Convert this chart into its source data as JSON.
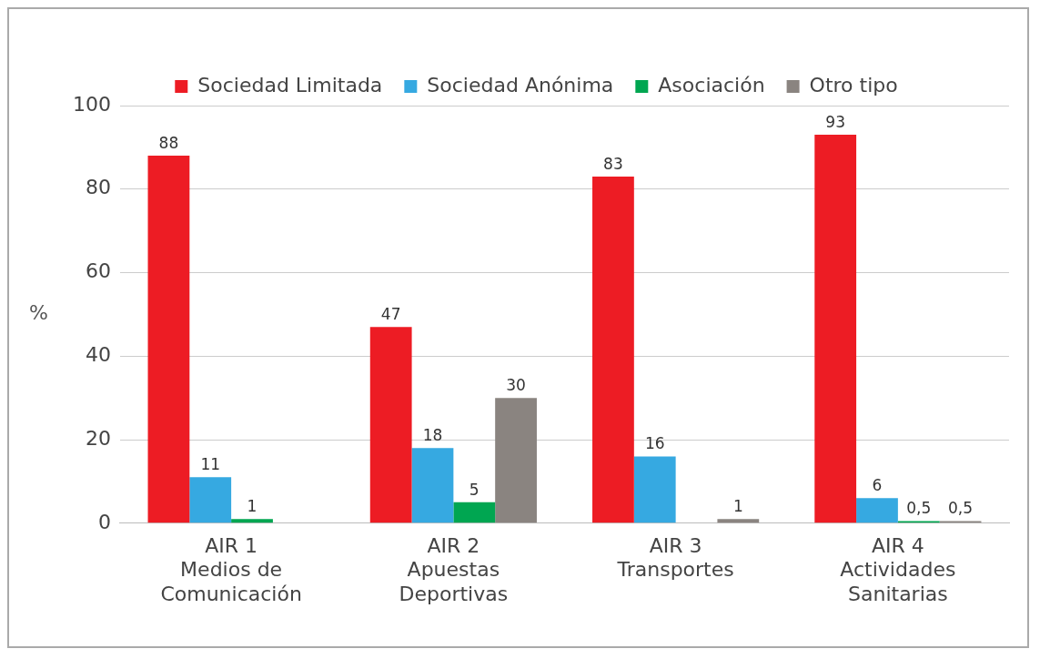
{
  "chart_data": {
    "type": "bar",
    "ylabel": "%",
    "categories": [
      "AIR 1\nMedios de\nComunicación",
      "AIR 2\nApuestas\nDeportivas",
      "AIR 3\nTransportes",
      "AIR 4\nActividades\nSanitarias"
    ],
    "series": [
      {
        "name": "Sociedad Limitada",
        "color": "#ed1c24",
        "values": [
          88,
          47,
          83,
          93
        ],
        "value_labels": [
          "88",
          "47",
          "83",
          "93"
        ]
      },
      {
        "name": "Sociedad Anónima",
        "color": "#36a9e1",
        "values": [
          11,
          18,
          16,
          6
        ],
        "value_labels": [
          "11",
          "18",
          "16",
          "6"
        ]
      },
      {
        "name": "Asociación",
        "color": "#00a651",
        "values": [
          1,
          5,
          null,
          0.5
        ],
        "value_labels": [
          "1",
          "5",
          null,
          "0,5"
        ]
      },
      {
        "name": "Otro tipo",
        "color": "#8a8480",
        "values": [
          null,
          30,
          1,
          0.5
        ],
        "value_labels": [
          null,
          "30",
          "1",
          "0,5"
        ]
      }
    ],
    "ylim": [
      0,
      100
    ],
    "yticks": [
      0,
      20,
      40,
      60,
      80,
      100
    ],
    "grid": "y",
    "legend": "top"
  }
}
